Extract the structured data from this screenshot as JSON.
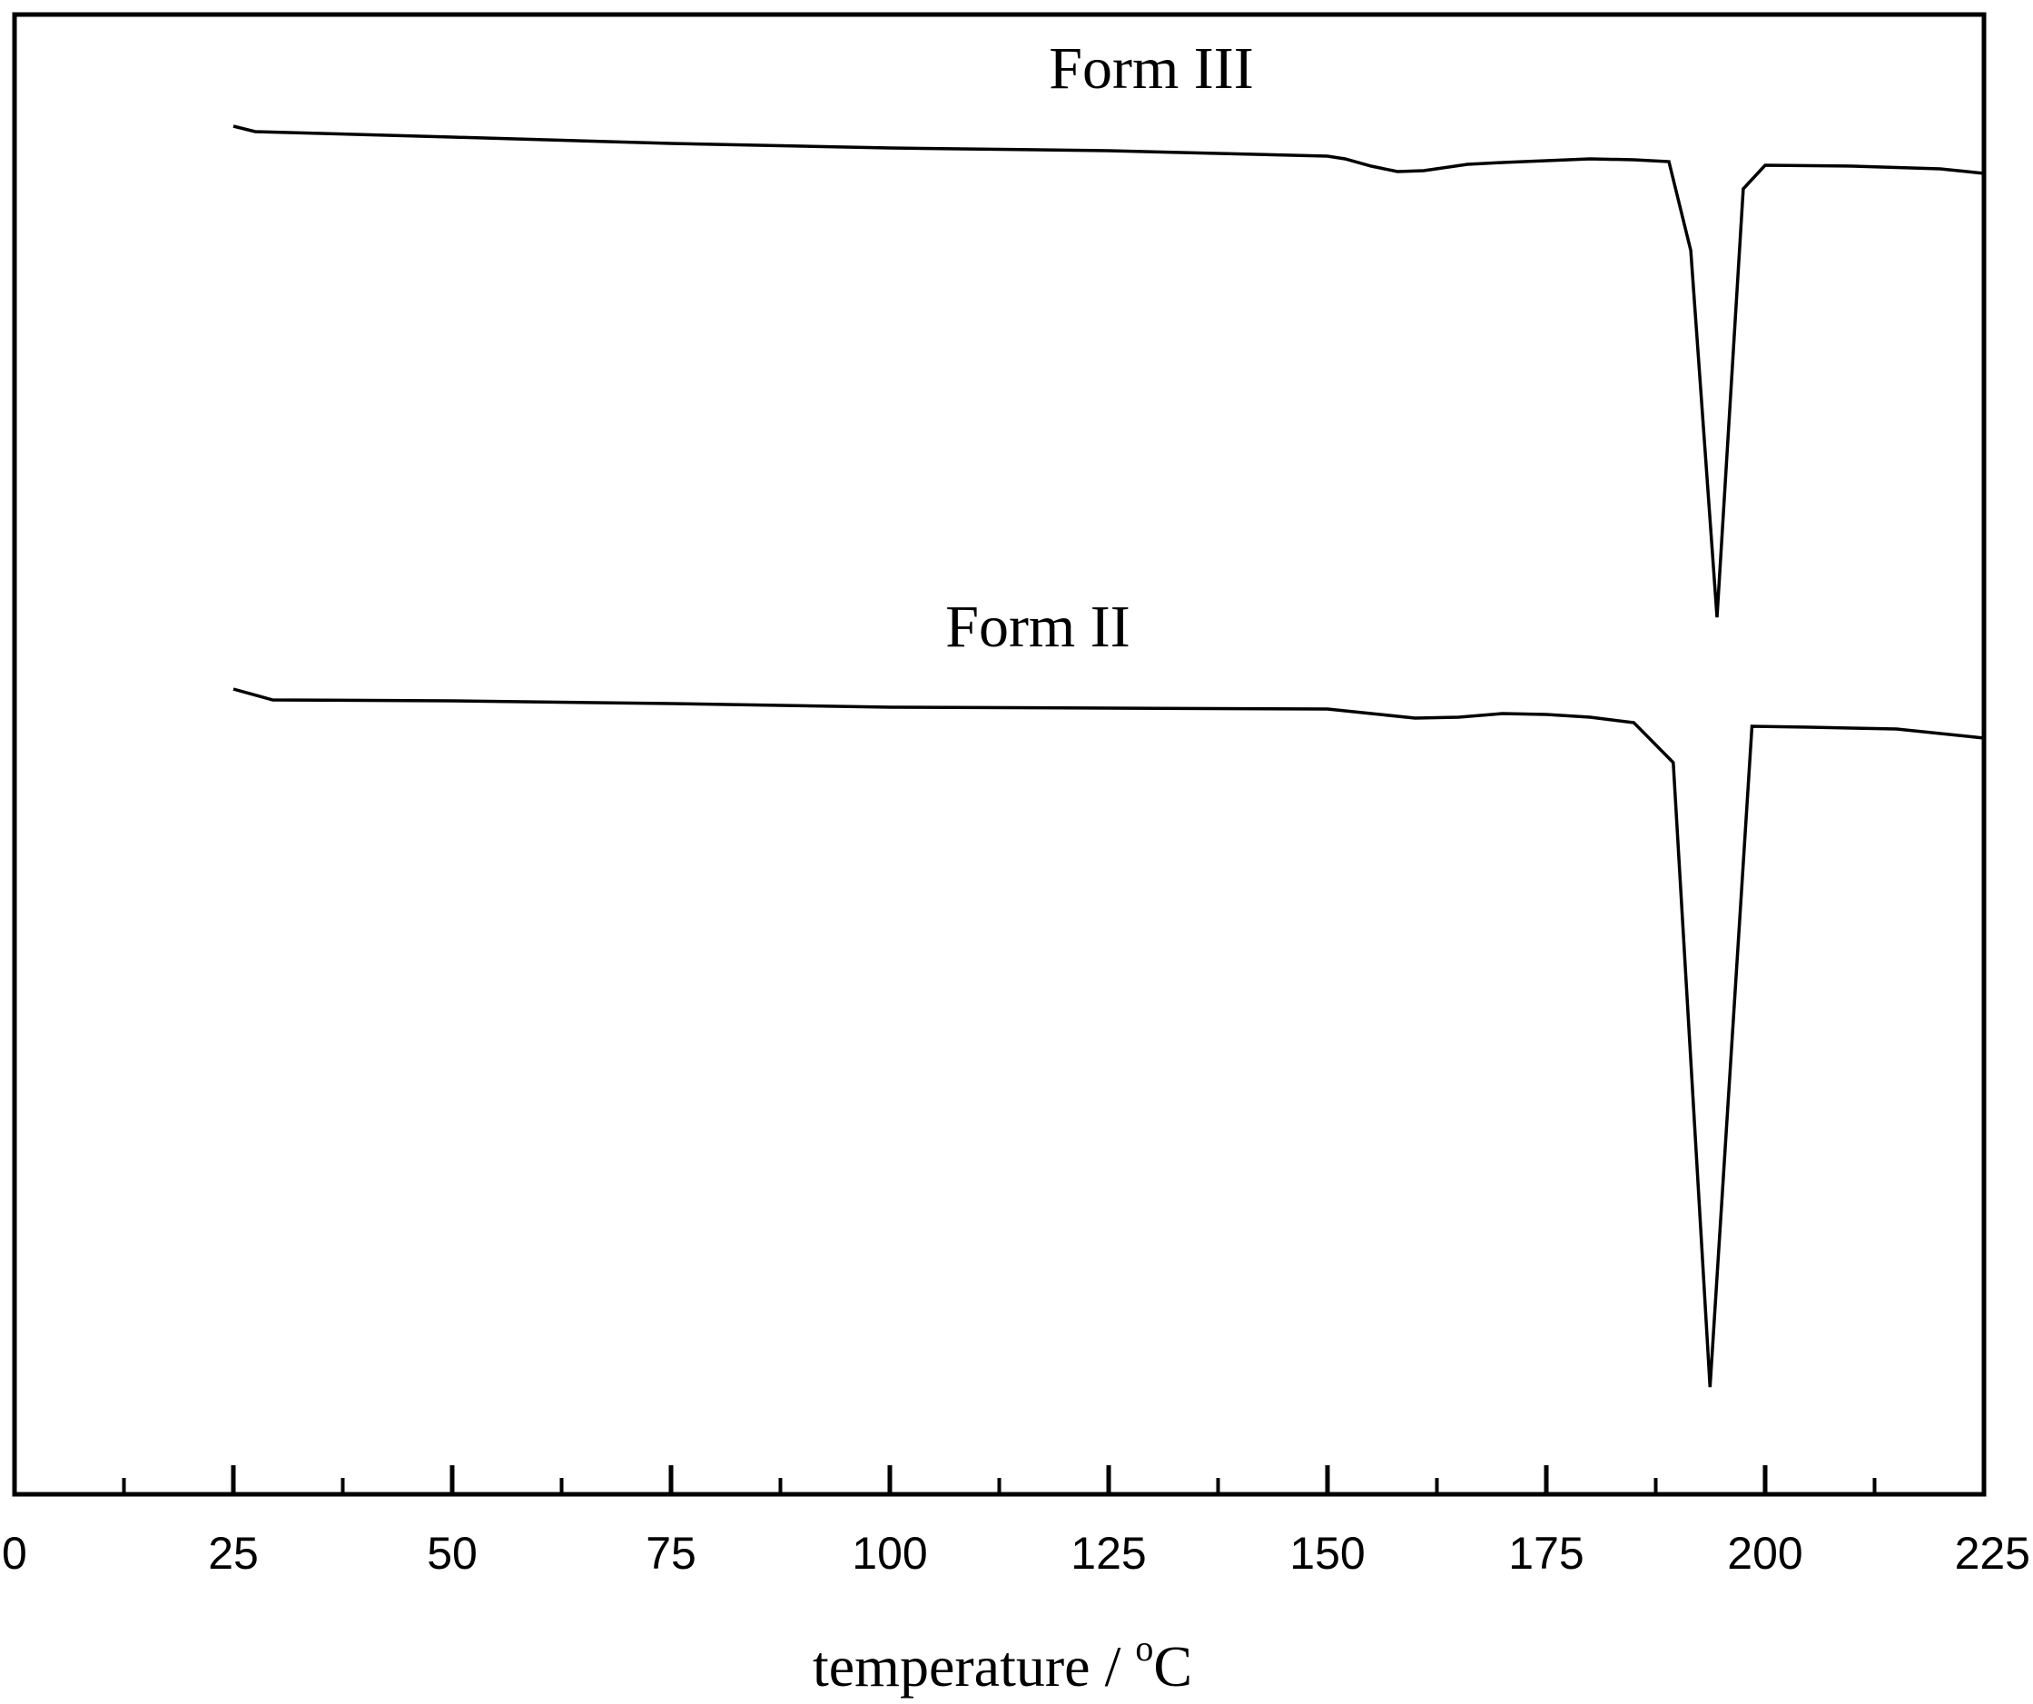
{
  "chart_data": {
    "type": "line",
    "title": "",
    "xlabel": "temperature / ",
    "xlabel_superscript": "o",
    "xlabel_unit": "C",
    "ylabel": "",
    "xlim": [
      0,
      225
    ],
    "x_major_ticks": [
      0,
      25,
      50,
      75,
      100,
      125,
      150,
      175,
      200,
      225
    ],
    "x_minor_ticks": [
      12.5,
      37.5,
      62.5,
      87.5,
      112.5,
      137.5,
      162.5,
      187.5,
      212.5
    ],
    "y_tick_labels": false,
    "grid": false,
    "legend": "none",
    "line_color": "#000000",
    "series": [
      {
        "name": "Form III",
        "points": [
          [
            25,
            139
          ],
          [
            27.5,
            145
          ],
          [
            50,
            151
          ],
          [
            75,
            158
          ],
          [
            100,
            163
          ],
          [
            125,
            166
          ],
          [
            150,
            172
          ],
          [
            152,
            175
          ],
          [
            155,
            183
          ],
          [
            158,
            189
          ],
          [
            161,
            188
          ],
          [
            166,
            181
          ],
          [
            170,
            179
          ],
          [
            175,
            177
          ],
          [
            180,
            175
          ],
          [
            185,
            176
          ],
          [
            189,
            178
          ],
          [
            191.5,
            276
          ],
          [
            194.5,
            680
          ],
          [
            197.5,
            208
          ],
          [
            200,
            182
          ],
          [
            210,
            183
          ],
          [
            220,
            186
          ],
          [
            225,
            191
          ]
        ]
      },
      {
        "name": "Form II",
        "points": [
          [
            25,
            759
          ],
          [
            29.5,
            771
          ],
          [
            50,
            772
          ],
          [
            75,
            775
          ],
          [
            100,
            779
          ],
          [
            125,
            780
          ],
          [
            150,
            781
          ],
          [
            155,
            786
          ],
          [
            160,
            791
          ],
          [
            165,
            790
          ],
          [
            170,
            786
          ],
          [
            175,
            787
          ],
          [
            180,
            790
          ],
          [
            185,
            796
          ],
          [
            189.5,
            840
          ],
          [
            193.7,
            1528
          ],
          [
            198.5,
            800
          ],
          [
            205,
            801
          ],
          [
            215,
            803
          ],
          [
            225,
            813
          ]
        ]
      }
    ]
  }
}
